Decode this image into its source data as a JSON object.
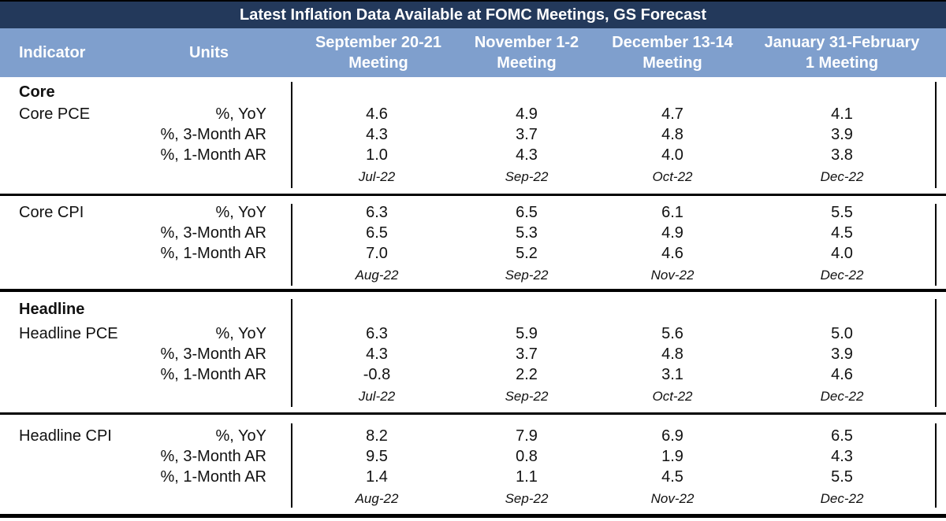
{
  "title": "Latest Inflation Data Available at FOMC Meetings, GS Forecast",
  "headers": {
    "indicator": "Indicator",
    "units": "Units",
    "meetings": [
      [
        "September 20-21",
        "Meeting"
      ],
      [
        "November 1-2",
        "Meeting"
      ],
      [
        "December 13-14",
        "Meeting"
      ],
      [
        "January 31-February",
        "1 Meeting"
      ]
    ]
  },
  "sections": {
    "core": "Core",
    "headline": "Headline"
  },
  "groups": [
    {
      "indicator": "Core PCE",
      "units": [
        "%, YoY",
        "%, 3-Month AR",
        "%, 1-Month AR"
      ],
      "values": [
        [
          "4.6",
          "4.9",
          "4.7",
          "4.1"
        ],
        [
          "4.3",
          "3.7",
          "4.8",
          "3.9"
        ],
        [
          "1.0",
          "4.3",
          "4.0",
          "3.8"
        ]
      ],
      "dates": [
        "Jul-22",
        "Sep-22",
        "Oct-22",
        "Dec-22"
      ]
    },
    {
      "indicator": "Core CPI",
      "units": [
        "%, YoY",
        "%, 3-Month AR",
        "%, 1-Month AR"
      ],
      "values": [
        [
          "6.3",
          "6.5",
          "6.1",
          "5.5"
        ],
        [
          "6.5",
          "5.3",
          "4.9",
          "4.5"
        ],
        [
          "7.0",
          "5.2",
          "4.6",
          "4.0"
        ]
      ],
      "dates": [
        "Aug-22",
        "Sep-22",
        "Nov-22",
        "Dec-22"
      ]
    },
    {
      "indicator": "Headline PCE",
      "units": [
        "%, YoY",
        "%, 3-Month AR",
        "%, 1-Month AR"
      ],
      "values": [
        [
          "6.3",
          "5.9",
          "5.6",
          "5.0"
        ],
        [
          "4.3",
          "3.7",
          "4.8",
          "3.9"
        ],
        [
          "-0.8",
          "2.2",
          "3.1",
          "4.6"
        ]
      ],
      "dates": [
        "Jul-22",
        "Sep-22",
        "Oct-22",
        "Dec-22"
      ]
    },
    {
      "indicator": "Headline CPI",
      "units": [
        "%, YoY",
        "%, 3-Month AR",
        "%, 1-Month AR"
      ],
      "values": [
        [
          "8.2",
          "7.9",
          "6.9",
          "6.5"
        ],
        [
          "9.5",
          "0.8",
          "1.9",
          "4.3"
        ],
        [
          "1.4",
          "1.1",
          "4.5",
          "5.5"
        ]
      ],
      "dates": [
        "Aug-22",
        "Sep-22",
        "Nov-22",
        "Dec-22"
      ]
    }
  ]
}
